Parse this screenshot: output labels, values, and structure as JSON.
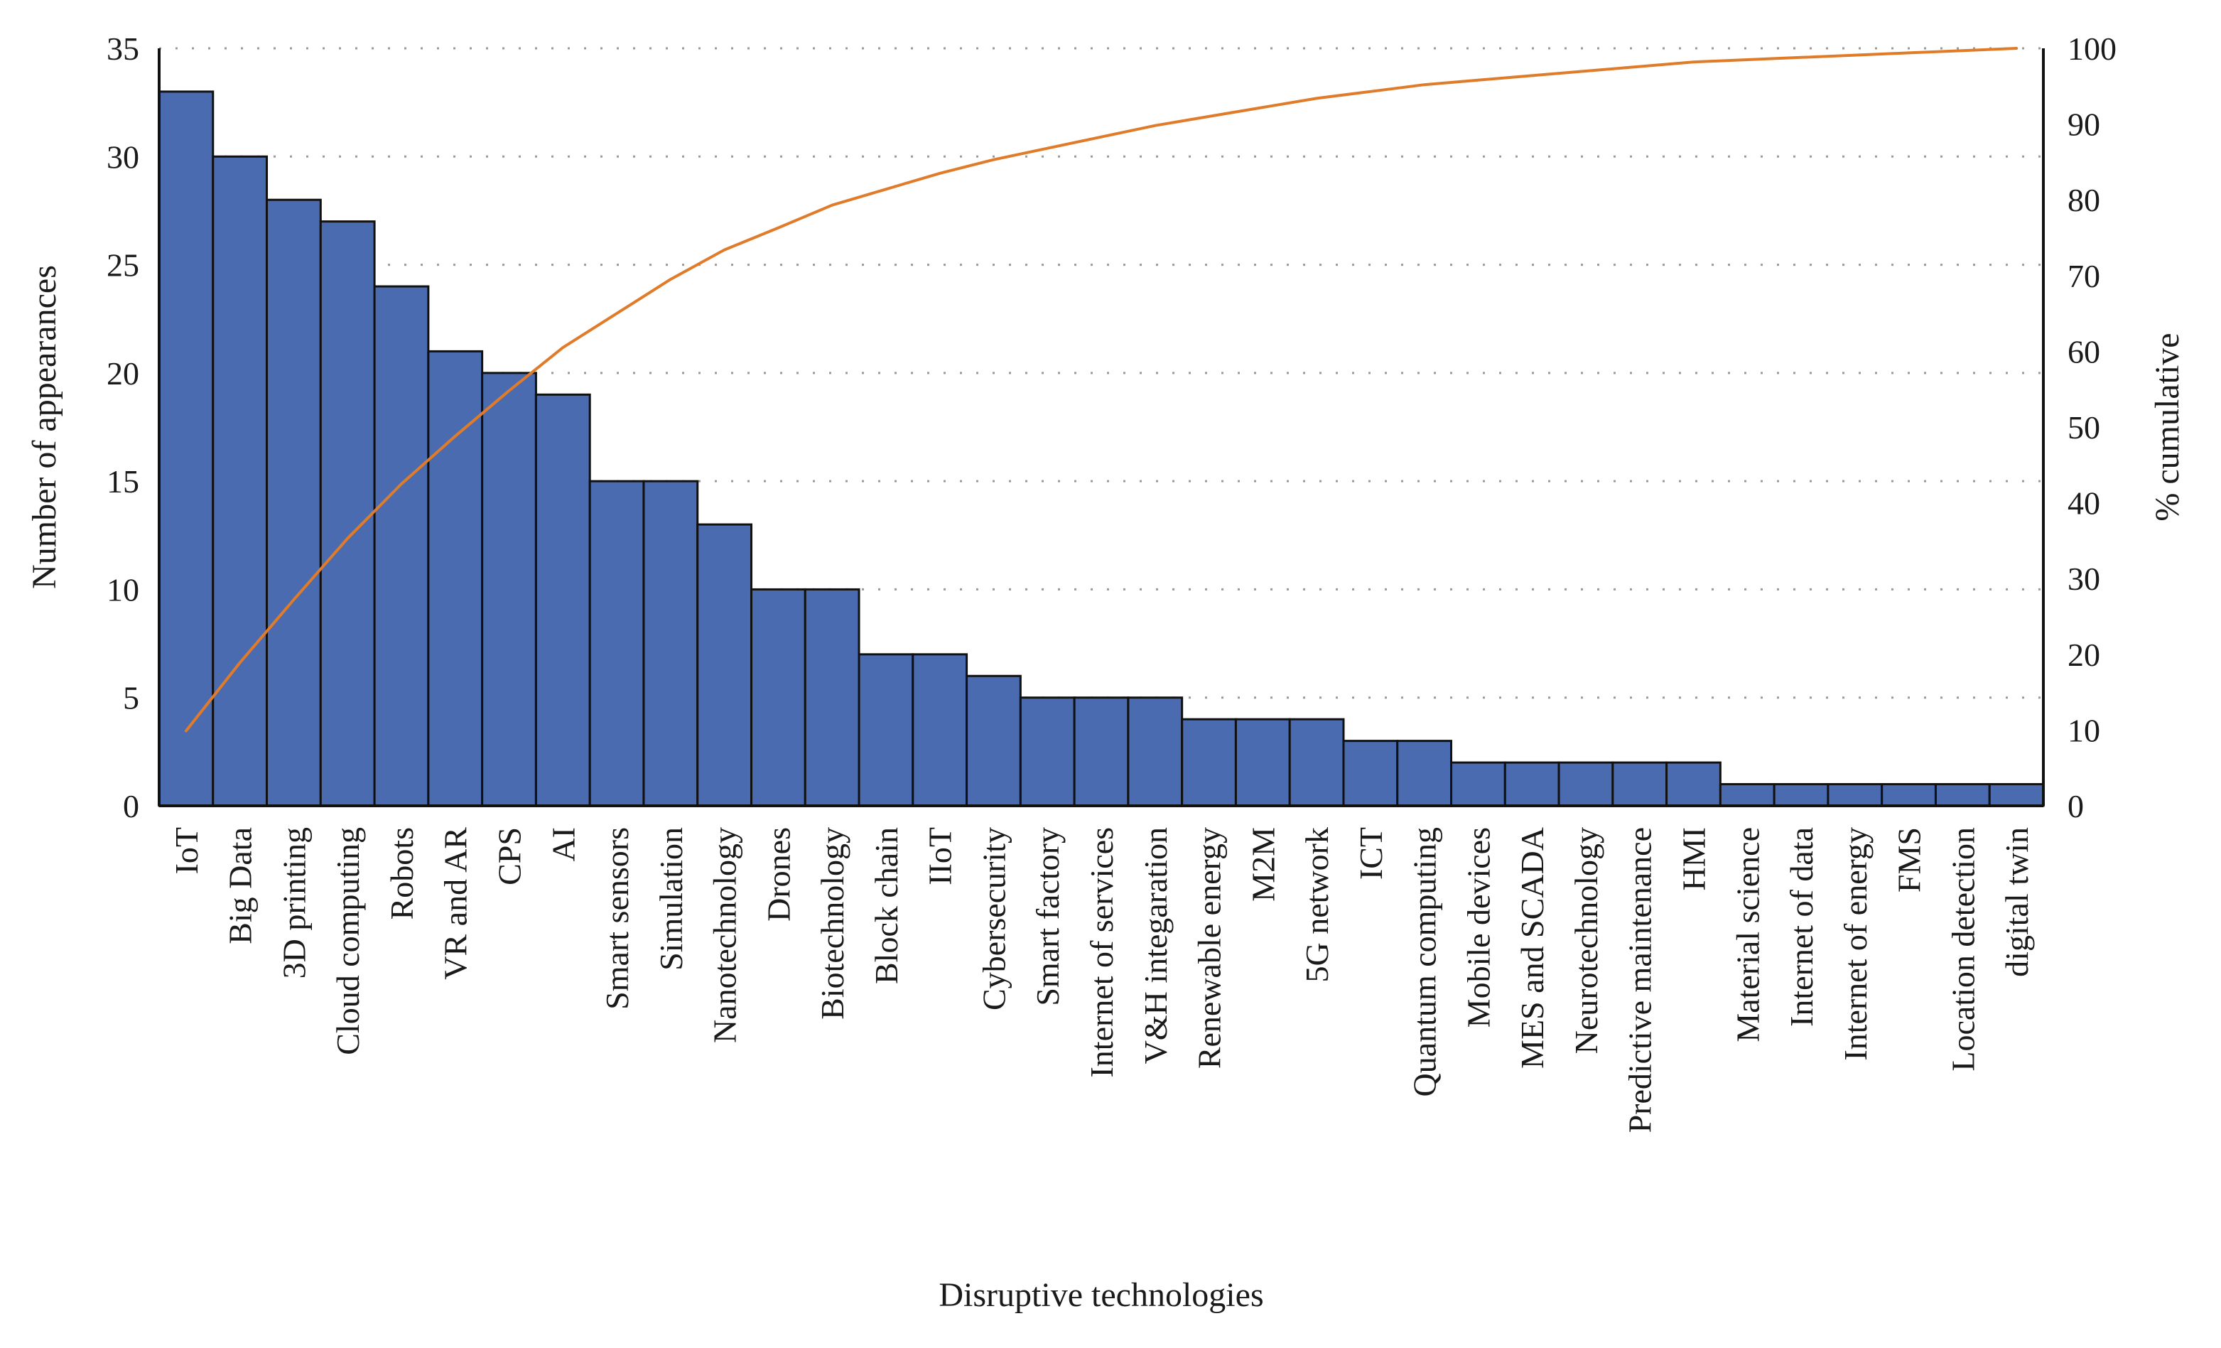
{
  "chart_data": {
    "type": "bar",
    "title": "",
    "xlabel": "Disruptive technologies",
    "ylabel": "Number of appearances",
    "y2label": "% cumulative",
    "ylim": [
      0,
      35
    ],
    "y2lim": [
      0,
      100
    ],
    "yticks": [
      "0",
      "5",
      "10",
      "15",
      "20",
      "25",
      "30",
      "35"
    ],
    "y2ticks": [
      "0",
      "10",
      "20",
      "30",
      "40",
      "50",
      "60",
      "70",
      "80",
      "90",
      "100"
    ],
    "grid": "horizontal dotted",
    "legend": "none",
    "categories": [
      "IoT",
      "Big Data",
      "3D printing",
      "Cloud computing",
      "Robots",
      "VR and AR",
      "CPS",
      "AI",
      "Smart sensors",
      "Simulation",
      "Nanotechnology",
      "Drones",
      "Biotechnology",
      "Block chain",
      "IIoT",
      "Cybersecurity",
      "Smart factory",
      "Internet of services",
      "V&H integaration",
      "Renewable energy",
      "M2M",
      "5G network",
      "ICT",
      "Quantum computing",
      "Mobile devices",
      "MES and SCADA",
      "Neurotechnology",
      "Predictive maintenance",
      "HMI",
      "Material science",
      "Internet of data",
      "Internet of energy",
      "FMS",
      "Location detection",
      "digital twin"
    ],
    "series": [
      {
        "type": "bar",
        "axis": "left",
        "values": [
          33,
          30,
          28,
          27,
          24,
          21,
          20,
          19,
          15,
          15,
          13,
          10,
          10,
          7,
          7,
          6,
          5,
          5,
          5,
          4,
          4,
          4,
          3,
          3,
          2,
          2,
          2,
          2,
          2,
          1,
          1,
          1,
          1,
          1,
          1
        ]
      },
      {
        "type": "line",
        "axis": "right",
        "values": [
          9.9,
          18.9,
          27.2,
          35.3,
          42.5,
          48.8,
          54.8,
          60.5,
          65.0,
          69.5,
          73.4,
          76.3,
          79.3,
          81.4,
          83.5,
          85.3,
          86.8,
          88.3,
          89.8,
          91.0,
          92.2,
          93.4,
          94.3,
          95.2,
          95.8,
          96.4,
          97.0,
          97.6,
          98.2,
          98.5,
          98.8,
          99.1,
          99.4,
          99.7,
          100.0
        ]
      }
    ],
    "colors": {
      "bar_fill": "#4a6baf",
      "bar_stroke": "#111111",
      "line": "#e07b2a",
      "grid": "#9a9a9a",
      "axis": "#111111"
    }
  }
}
